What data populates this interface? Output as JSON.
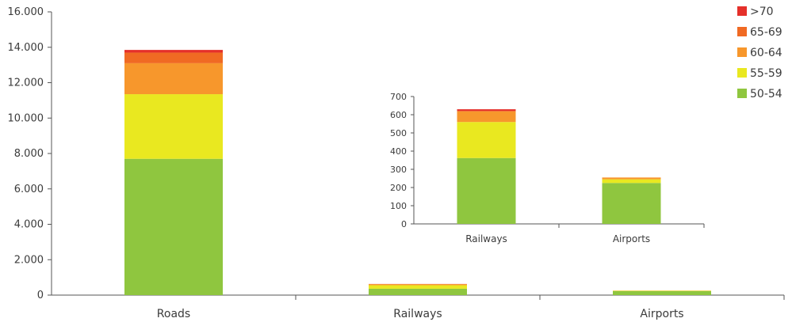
{
  "chart_data": [
    {
      "type": "bar",
      "stacked": true,
      "title": "",
      "xlabel": "",
      "ylabel": "",
      "categories": [
        "Roads",
        "Railways",
        "Airports"
      ],
      "yticks": [
        "0",
        "2.000",
        "4.000",
        "6.000",
        "8.000",
        "10.000",
        "12.000",
        "14.000",
        "16.000"
      ],
      "ylim": [
        0,
        16000
      ],
      "series": [
        {
          "name": "50-54",
          "color": "#8fc63f",
          "values": [
            7700,
            360,
            225
          ]
        },
        {
          "name": "55-59",
          "color": "#e9e820",
          "values": [
            3650,
            200,
            20
          ]
        },
        {
          "name": "60-64",
          "color": "#f7972c",
          "values": [
            1750,
            60,
            10
          ]
        },
        {
          "name": "65-69",
          "color": "#f06a23",
          "values": [
            600,
            0,
            0
          ]
        },
        {
          "name": ">70",
          "color": "#e5302a",
          "values": [
            150,
            10,
            0
          ]
        }
      ],
      "legend": {
        "position": "top-right",
        "order": [
          ">70",
          "65-69",
          "60-64",
          "55-59",
          "50-54"
        ]
      }
    },
    {
      "type": "bar",
      "stacked": true,
      "inset": true,
      "title": "",
      "xlabel": "",
      "ylabel": "",
      "categories": [
        "Railways",
        "Airports"
      ],
      "yticks": [
        "0",
        "100",
        "200",
        "300",
        "400",
        "500",
        "600",
        "700"
      ],
      "ylim": [
        0,
        700
      ],
      "series": [
        {
          "name": "50-54",
          "color": "#8fc63f",
          "values": [
            362,
            225
          ]
        },
        {
          "name": "55-59",
          "color": "#e9e820",
          "values": [
            198,
            20
          ]
        },
        {
          "name": "60-64",
          "color": "#f7972c",
          "values": [
            60,
            10
          ]
        },
        {
          "name": "65-69",
          "color": "#f06a23",
          "values": [
            0,
            0
          ]
        },
        {
          "name": ">70",
          "color": "#e5302a",
          "values": [
            10,
            0
          ]
        }
      ]
    }
  ]
}
